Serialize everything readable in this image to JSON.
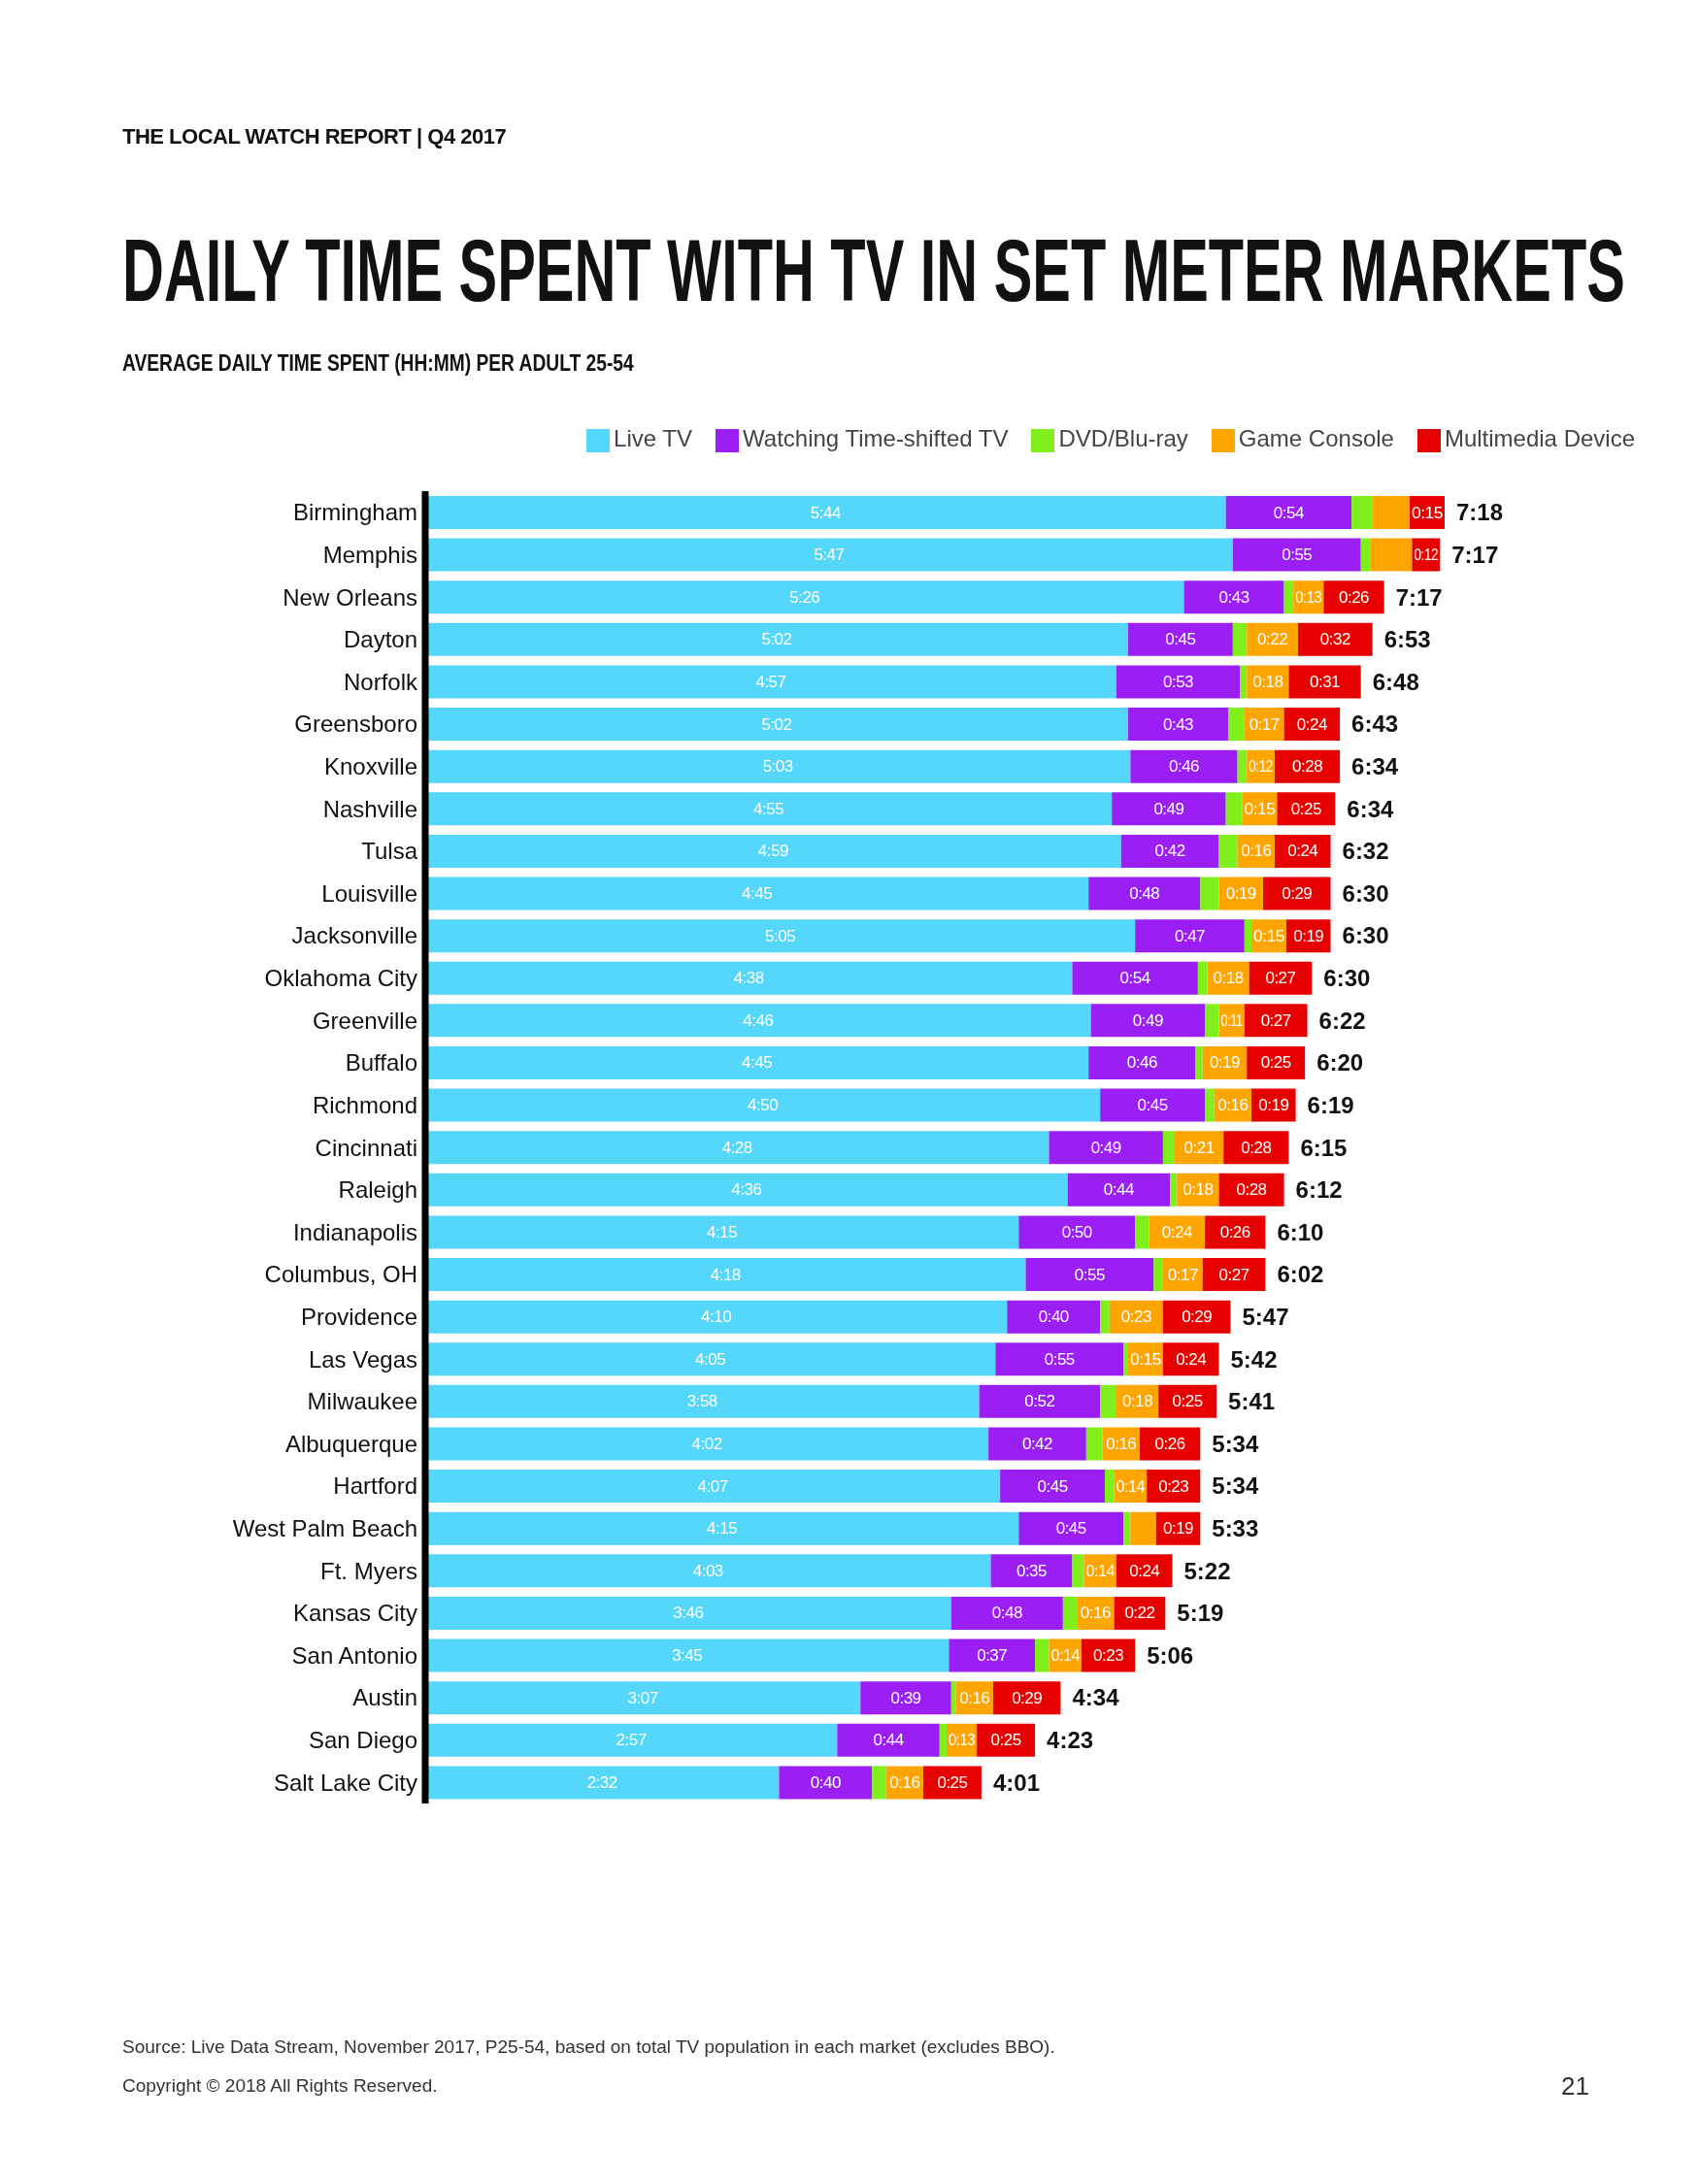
{
  "chart_data": {
    "type": "bar",
    "orientation": "horizontal",
    "stacked": true,
    "title": "DAILY TIME SPENT WITH TV IN SET METER MARKETS",
    "subtitle": "AVERAGE DAILY TIME SPENT (HH:MM) PER ADULT 25-54",
    "legend": "top right",
    "annotations": [
      "THE LOCAL WATCH REPORT | Q4 2017",
      "Source: Live Data Stream, November 2017, P25-54, based on total TV population in each market (excludes BBO).",
      "Copyright © 2018 All Rights Reserved.",
      "21",
      {
        "text": "7:18",
        "x": 438,
        "y": "Birmingham"
      },
      {
        "text": "7:17",
        "x": 436,
        "y": "Memphis"
      },
      {
        "text": "7:17",
        "x": 412,
        "y": "New Orleans"
      },
      {
        "text": "6:53",
        "x": 407,
        "y": "Dayton"
      },
      {
        "text": "6:48",
        "x": 402,
        "y": "Norfolk"
      },
      {
        "text": "6:43",
        "x": 393,
        "y": "Greensboro"
      },
      {
        "text": "6:34",
        "x": 393,
        "y": "Knoxville"
      },
      {
        "text": "6:34",
        "x": 391,
        "y": "Nashville"
      },
      {
        "text": "6:32",
        "x": 389,
        "y": "Tulsa"
      },
      {
        "text": "6:30",
        "x": 389,
        "y": "Louisville"
      },
      {
        "text": "6:30",
        "x": 389,
        "y": "Jacksonville"
      },
      {
        "text": "6:30",
        "x": 381,
        "y": "Oklahoma City"
      },
      {
        "text": "6:22",
        "x": 379,
        "y": "Greenville"
      },
      {
        "text": "6:20",
        "x": 378,
        "y": "Buffalo"
      },
      {
        "text": "6:19",
        "x": 374,
        "y": "Richmond"
      },
      {
        "text": "6:15",
        "x": 371,
        "y": "Cincinnati"
      },
      {
        "text": "6:12",
        "x": 369,
        "y": "Raleigh"
      },
      {
        "text": "6:10",
        "x": 361,
        "y": "Indianapolis"
      },
      {
        "text": "6:02",
        "x": 361,
        "y": "Columbus, OH"
      },
      {
        "text": "5:47",
        "x": 346,
        "y": "Providence"
      },
      {
        "text": "5:42",
        "x": 341,
        "y": "Las Vegas"
      },
      {
        "text": "5:41",
        "x": 340,
        "y": "Milwaukee"
      },
      {
        "text": "5:34",
        "x": 333,
        "y": "Albuquerque"
      },
      {
        "text": "5:34",
        "x": 333,
        "y": "Hartford"
      },
      {
        "text": "5:33",
        "x": 333,
        "y": "West Palm Beach"
      },
      {
        "text": "5:22",
        "x": 321,
        "y": "Ft. Myers"
      },
      {
        "text": "5:19",
        "x": 318,
        "y": "Kansas City"
      },
      {
        "text": "5:06",
        "x": 305,
        "y": "San Antonio"
      },
      {
        "text": "4:34",
        "x": 273,
        "y": "Austin"
      },
      {
        "text": "4:23",
        "x": 262,
        "y": "San Diego"
      },
      {
        "text": "4:01",
        "x": 239,
        "y": "Salt Lake City"
      }
    ],
    "categories": [
      "Birmingham",
      "Memphis",
      "New Orleans",
      "Dayton",
      "Norfolk",
      "Greensboro",
      "Knoxville",
      "Nashville",
      "Tulsa",
      "Louisville",
      "Jacksonville",
      "Oklahoma City",
      "Greenville",
      "Buffalo",
      "Richmond",
      "Cincinnati",
      "Raleigh",
      "Indianapolis",
      "Columbus, OH",
      "Providence",
      "Las Vegas",
      "Milwaukee",
      "Albuquerque",
      "Hartford",
      "West Palm Beach",
      "Ft. Myers",
      "Kansas City",
      "San Antonio",
      "Austin",
      "San Diego",
      "Salt Lake City"
    ],
    "series": [
      {
        "name": "Live TV",
        "color": "#55d6fb",
        "values": [
          344,
          347,
          326,
          302,
          297,
          302,
          303,
          295,
          299,
          285,
          305,
          278,
          286,
          285,
          290,
          268,
          276,
          255,
          258,
          250,
          245,
          238,
          242,
          247,
          255,
          243,
          226,
          225,
          187,
          177,
          152
        ],
        "value_labels": [
          "5:44",
          "5:47",
          "5:26",
          "5:02",
          "4:57",
          "5:02",
          "5:03",
          "4:55",
          "4:59",
          "4:45",
          "5:05",
          "4:38",
          "4:46",
          "4:45",
          "4:50",
          "4:28",
          "4:36",
          "4:15",
          "4:18",
          "4:10",
          "4:05",
          "3:58",
          "4:02",
          "4:07",
          "4:15",
          "4:03",
          "3:46",
          "3:45",
          "3:07",
          "2:57",
          "2:32"
        ]
      },
      {
        "name": "Watching Time-shifted TV",
        "color": "#9b1ff5",
        "values": [
          54,
          55,
          43,
          45,
          53,
          43,
          46,
          49,
          42,
          48,
          47,
          54,
          49,
          46,
          45,
          49,
          44,
          50,
          55,
          40,
          55,
          52,
          42,
          45,
          45,
          35,
          48,
          37,
          39,
          44,
          40
        ],
        "value_labels": [
          "0:54",
          "0:55",
          "0:43",
          "0:45",
          "0:53",
          "0:43",
          "0:46",
          "0:49",
          "0:42",
          "0:48",
          "0:47",
          "0:54",
          "0:49",
          "0:46",
          "0:45",
          "0:49",
          "0:44",
          "0:50",
          "0:55",
          "0:40",
          "0:55",
          "0:52",
          "0:42",
          "0:45",
          "0:45",
          "0:35",
          "0:48",
          "0:37",
          "0:39",
          "0:44",
          "0:40"
        ]
      },
      {
        "name": "DVD/Blu-ray",
        "color": "#80f01c",
        "values": [
          9,
          4,
          4,
          6,
          3,
          7,
          4,
          7,
          8,
          8,
          3,
          4,
          6,
          3,
          4,
          5,
          3,
          6,
          4,
          4,
          2,
          7,
          7,
          4,
          3,
          5,
          6,
          6,
          2,
          3,
          6
        ]
      },
      {
        "name": "Game Console",
        "color": "#ffa500",
        "values": [
          16,
          18,
          13,
          22,
          18,
          17,
          12,
          15,
          16,
          19,
          15,
          18,
          11,
          19,
          16,
          21,
          18,
          24,
          17,
          23,
          15,
          18,
          16,
          14,
          11,
          14,
          16,
          14,
          16,
          13,
          16
        ],
        "value_labels": [
          null,
          null,
          "0:13",
          "0:22",
          "0:18",
          "0:17",
          "0:12",
          "0:15",
          "0:16",
          "0:19",
          "0:15",
          "0:18",
          "0:11",
          "0:19",
          "0:16",
          "0:21",
          "0:18",
          "0:24",
          "0:17",
          "0:23",
          "0:15",
          "0:18",
          "0:16",
          "0:14",
          null,
          "0:14",
          "0:16",
          "0:14",
          "0:16",
          "0:13",
          "0:16"
        ]
      },
      {
        "name": "Multimedia Device",
        "color": "#e60000",
        "values": [
          15,
          12,
          26,
          32,
          31,
          24,
          28,
          25,
          24,
          29,
          19,
          27,
          27,
          25,
          19,
          28,
          28,
          26,
          27,
          29,
          24,
          25,
          26,
          23,
          19,
          24,
          22,
          23,
          29,
          25,
          25
        ],
        "value_labels": [
          "0:15",
          "0:12",
          "0:26",
          "0:32",
          "0:31",
          "0:24",
          "0:28",
          "0:25",
          "0:24",
          "0:29",
          "0:19",
          "0:27",
          "0:27",
          "0:25",
          "0:19",
          "0:28",
          "0:28",
          "0:26",
          "0:27",
          "0:29",
          "0:24",
          "0:25",
          "0:26",
          "0:23",
          "0:19",
          "0:24",
          "0:22",
          "0:23",
          "0:29",
          "0:25",
          "0:25"
        ]
      }
    ]
  }
}
